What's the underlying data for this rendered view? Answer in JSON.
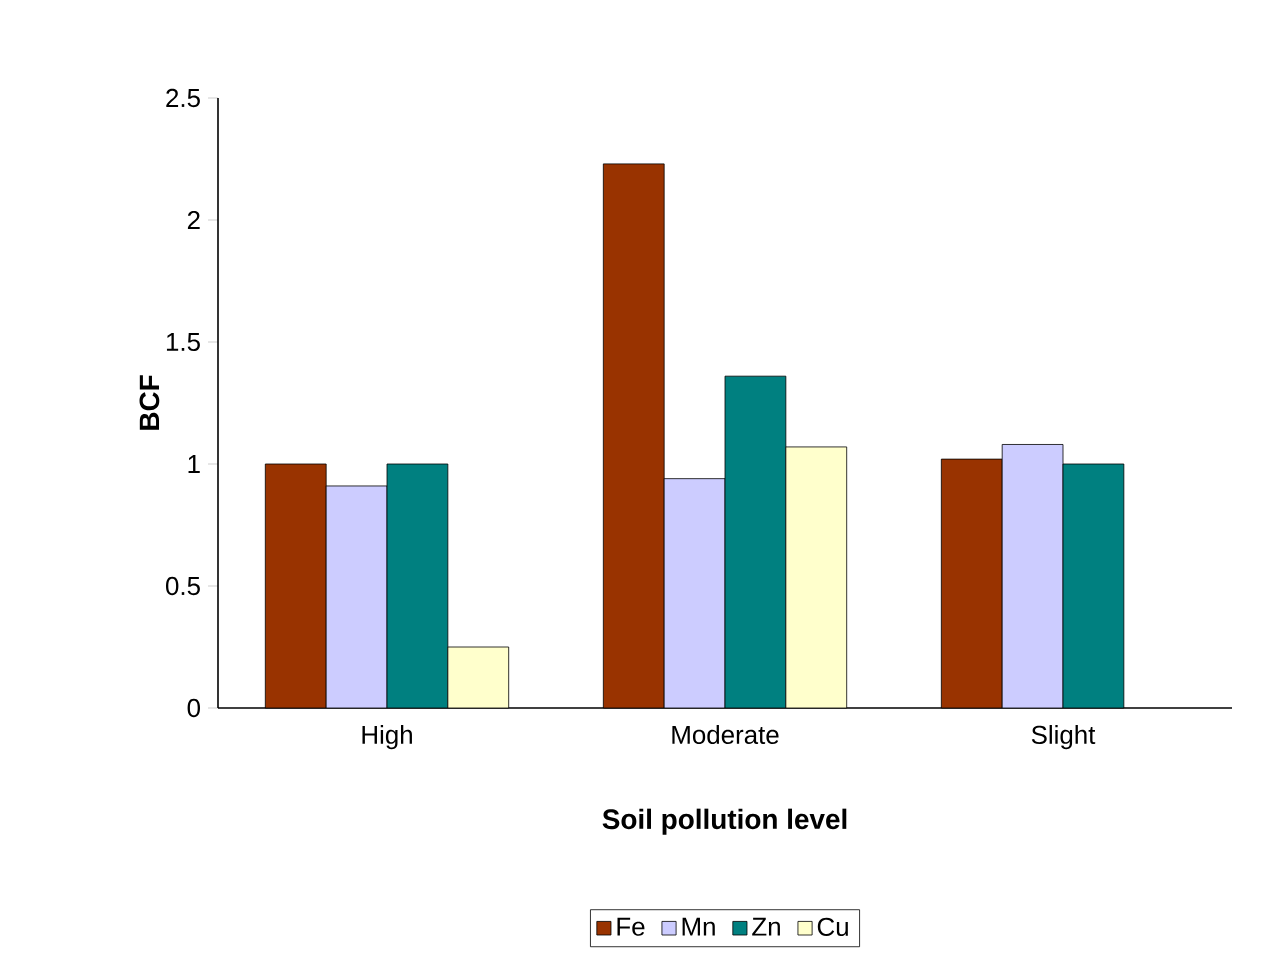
{
  "chart_data": {
    "type": "bar",
    "xlabel": "Soil pollution level",
    "ylabel": "BCF",
    "categories": [
      "High",
      "Moderate",
      "Slight"
    ],
    "series": [
      {
        "name": "Fe",
        "color": "#993300",
        "values": [
          1.0,
          2.23,
          1.02
        ]
      },
      {
        "name": "Mn",
        "color": "#ccccff",
        "values": [
          0.91,
          0.94,
          1.08
        ]
      },
      {
        "name": "Zn",
        "color": "#008080",
        "values": [
          1.0,
          1.36,
          1.0
        ]
      },
      {
        "name": "Cu",
        "color": "#ffffcc",
        "values": [
          0.25,
          1.07,
          null
        ]
      }
    ],
    "ylim": [
      0,
      2.5
    ],
    "yticks": [
      0,
      0.5,
      1,
      1.5,
      2,
      2.5
    ],
    "grid": false,
    "legend": "bottom"
  }
}
